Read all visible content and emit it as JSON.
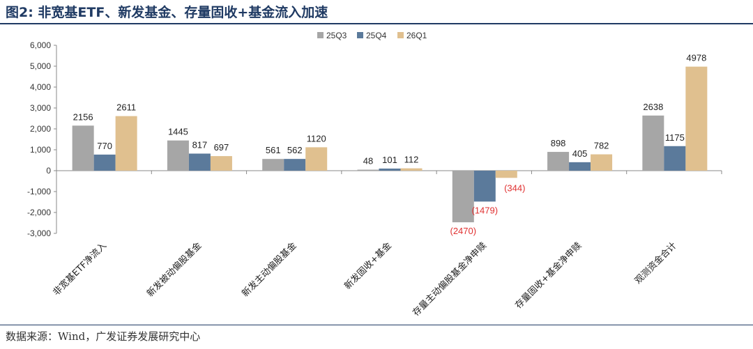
{
  "header": {
    "title": "图2:  非宽基ETF、新发基金、存量固收+基金流入加速"
  },
  "footer": {
    "source": "数据来源：Wind，广发证券发展研究中心"
  },
  "colors": {
    "title": "#1f3a63",
    "series_25Q3": "#a6a6a6",
    "series_25Q4": "#5b7a9b",
    "series_26Q1": "#e0c08f",
    "negative_label": "#e03030"
  },
  "chart_data": {
    "type": "bar",
    "title": "",
    "xlabel": "",
    "ylabel": "",
    "ylim": [
      -3000,
      6000
    ],
    "yticks": [
      -3000,
      -2000,
      -1000,
      0,
      1000,
      2000,
      3000,
      4000,
      5000,
      6000
    ],
    "ytick_labels": [
      "-3,000",
      "-2,000",
      "-1,000",
      "0",
      "1,000",
      "2,000",
      "3,000",
      "4,000",
      "5,000",
      "6,000"
    ],
    "grid": false,
    "legend_position": "top-center",
    "categories": [
      "非宽基ETF净流入",
      "新发被动偏股基金",
      "新发主动偏股基金",
      "新发固收+基金",
      "存量主动偏股基金净申赎",
      "存量固收+基金净申赎",
      "观测资金合计"
    ],
    "series": [
      {
        "name": "25Q3",
        "values": [
          2156,
          1445,
          561,
          48,
          -2470,
          898,
          2638
        ],
        "labels": [
          "2156",
          "1445",
          "561",
          "48",
          "(2470)",
          "898",
          "2638"
        ]
      },
      {
        "name": "25Q4",
        "values": [
          770,
          817,
          562,
          101,
          -1479,
          405,
          1175
        ],
        "labels": [
          "770",
          "817",
          "562",
          "101",
          "(1479)",
          "405",
          "1175"
        ]
      },
      {
        "name": "26Q1",
        "values": [
          2611,
          697,
          1120,
          112,
          -344,
          782,
          4978
        ],
        "labels": [
          "2611",
          "697",
          "1120",
          "112",
          "(344)",
          "782",
          "4978"
        ]
      }
    ]
  }
}
